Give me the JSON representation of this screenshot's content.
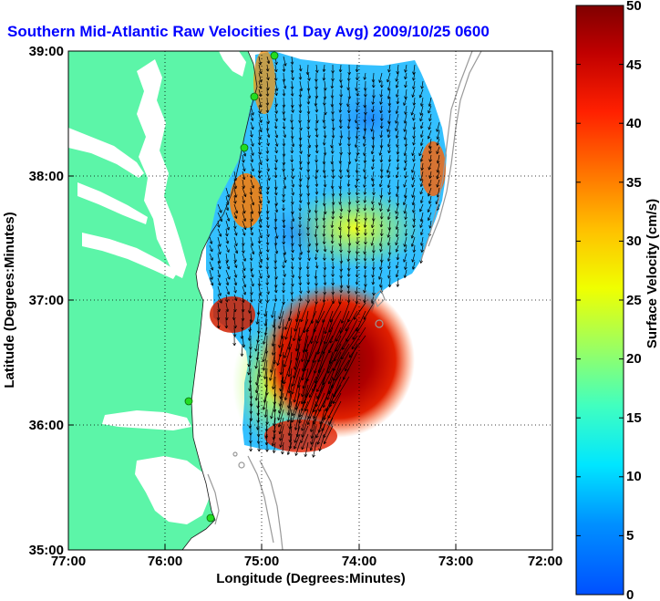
{
  "title": "Southern Mid-Atlantic Raw Velocities (1 Day Avg) 2009/10/25 0600 GMT",
  "title_visible": "Southern Mid-Atlantic Raw Velocities (1 Day Avg) 2009/10/25 0600",
  "xlabel": "Longitude (Degrees:Minutes)",
  "ylabel": "Latitude (Degrees:Minutes)",
  "x_ticks": [
    "77:00",
    "76:00",
    "75:00",
    "74:00",
    "73:00",
    "72:00"
  ],
  "y_ticks": [
    "39:00",
    "38:00",
    "37:00",
    "36:00",
    "35:00"
  ],
  "colorbar": {
    "label": "Surface Velocity (cm/s)",
    "ticks": [
      "50",
      "45",
      "40",
      "35",
      "30",
      "25",
      "20",
      "15",
      "10",
      "5",
      "0"
    ],
    "range": [
      0,
      50
    ]
  },
  "map": {
    "lon_range": [
      -77,
      -72
    ],
    "lat_range": [
      35,
      39
    ],
    "land_color": "#5cf5a8",
    "ocean_color": "#ffffff",
    "station_color": "#22dd22"
  }
}
